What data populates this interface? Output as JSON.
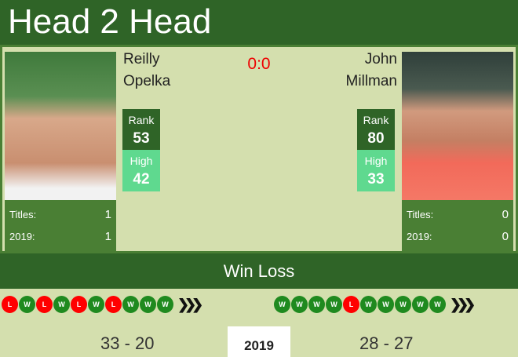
{
  "title": "Head 2 Head",
  "score": "0:0",
  "player1": {
    "first": "Reilly",
    "last": "Opelka",
    "rank_label": "Rank",
    "rank": "53",
    "high_label": "High",
    "high": "42",
    "titles_label": "Titles:",
    "titles": "1",
    "year_label": "2019:",
    "year_titles": "1",
    "form": [
      "L",
      "W",
      "L",
      "W",
      "L",
      "W",
      "L",
      "W",
      "W",
      "W"
    ],
    "record": "33 - 20"
  },
  "player2": {
    "first": "John",
    "last": "Millman",
    "rank_label": "Rank",
    "rank": "80",
    "high_label": "High",
    "high": "33",
    "titles_label": "Titles:",
    "titles": "0",
    "year_label": "2019:",
    "year_titles": "0",
    "form": [
      "W",
      "W",
      "W",
      "W",
      "L",
      "W",
      "W",
      "W",
      "W",
      "W"
    ],
    "record": "28 - 27"
  },
  "winloss_label": "Win Loss",
  "arrows": "❯❯❯",
  "year": "2019",
  "colors": {
    "header": "#2f6427",
    "panel": "#d4dfae",
    "win": "#1f8a1f",
    "loss": "#ff0000",
    "high": "#5fd98f"
  }
}
